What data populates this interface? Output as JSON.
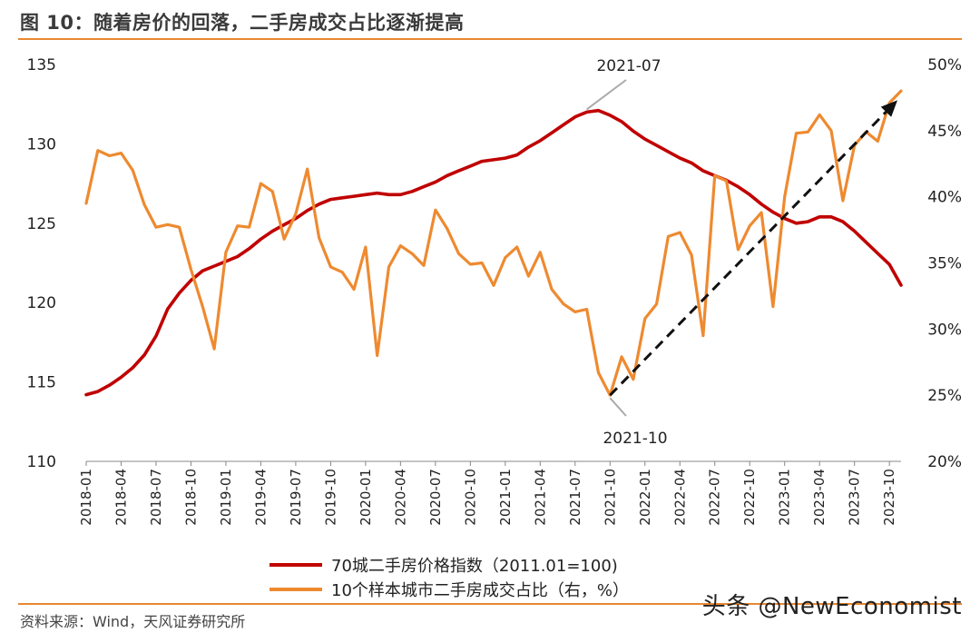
{
  "figure": {
    "title": "图 10：随着房价的回落，二手房成交占比逐渐提高",
    "source": "资料来源：Wind，天风证券研究所",
    "watermark": "头条 @NewEconomist"
  },
  "chart_data": {
    "type": "line",
    "title": "随着房价的回落，二手房成交占比逐渐提高",
    "xlabel": "",
    "ylabel_left": "",
    "ylabel_right": "",
    "ylim_left": [
      110,
      135
    ],
    "ylim_right": [
      20,
      50
    ],
    "yticks_left": [
      "110",
      "115",
      "120",
      "125",
      "130",
      "135"
    ],
    "yticks_right": [
      "20%",
      "25%",
      "30%",
      "35%",
      "40%",
      "45%",
      "50%"
    ],
    "x_tick_labels": [
      "2018-01",
      "2018-04",
      "2018-07",
      "2018-10",
      "2019-01",
      "2019-04",
      "2019-07",
      "2019-10",
      "2020-01",
      "2020-04",
      "2020-07",
      "2020-10",
      "2021-01",
      "2021-04",
      "2021-07",
      "2021-10",
      "2022-01",
      "2022-04",
      "2022-07",
      "2022-10",
      "2023-01",
      "2023-04",
      "2023-07",
      "2023-10"
    ],
    "x_count": 71,
    "series": [
      {
        "name": "70城二手房价格指数（2011.01=100)",
        "axis": "left",
        "color": "#c00000",
        "values": [
          114.2,
          114.4,
          114.8,
          115.3,
          115.9,
          116.7,
          117.9,
          119.6,
          120.6,
          121.4,
          122.0,
          122.3,
          122.6,
          122.9,
          123.4,
          124.0,
          124.5,
          124.9,
          125.3,
          125.8,
          126.2,
          126.5,
          126.6,
          126.7,
          126.8,
          126.9,
          126.8,
          126.8,
          127.0,
          127.3,
          127.6,
          128.0,
          128.3,
          128.6,
          128.9,
          129.0,
          129.1,
          129.3,
          129.8,
          130.2,
          130.7,
          131.2,
          131.7,
          132.0,
          132.1,
          131.8,
          131.4,
          130.8,
          130.3,
          129.9,
          129.5,
          129.1,
          128.8,
          128.3,
          128.0,
          127.7,
          127.3,
          126.8,
          126.2,
          125.7,
          125.3,
          125.0,
          125.1,
          125.4,
          125.4,
          125.1,
          124.5,
          123.8,
          123.1,
          122.4,
          121.1
        ]
      },
      {
        "name": "10个样本城市二手房成交占比（右，%）",
        "axis": "right",
        "color": "#ee8a30",
        "values": [
          39.5,
          43.5,
          43.1,
          43.3,
          42.0,
          39.4,
          37.7,
          37.9,
          37.7,
          34.5,
          31.7,
          28.5,
          35.8,
          37.8,
          37.7,
          41.0,
          40.4,
          36.8,
          38.7,
          42.1,
          36.9,
          34.7,
          34.3,
          33.0,
          36.2,
          28.0,
          34.7,
          36.3,
          35.7,
          34.8,
          39.0,
          37.6,
          35.7,
          34.9,
          35.0,
          33.3,
          35.4,
          36.2,
          34.0,
          35.8,
          33.0,
          31.9,
          31.3,
          31.5,
          26.7,
          25.0,
          27.9,
          26.2,
          30.8,
          31.9,
          37.0,
          37.3,
          35.6,
          29.5,
          41.6,
          41.2,
          36.0,
          37.8,
          38.8,
          31.7,
          40.0,
          44.8,
          44.9,
          46.2,
          45.0,
          39.7,
          43.9,
          44.9,
          44.2,
          47.1,
          48.0
        ]
      }
    ],
    "annotations": [
      {
        "label": "2021-07",
        "series": 0,
        "index": 43
      },
      {
        "label": "2021-10",
        "series": 1,
        "index": 45
      }
    ],
    "trend_arrow": {
      "from_index": 45,
      "from_value": 25.0,
      "to_index": 70,
      "to_value": 47.3,
      "axis": "right",
      "style": "dashed"
    },
    "legend_position": "bottom",
    "grid": false
  }
}
